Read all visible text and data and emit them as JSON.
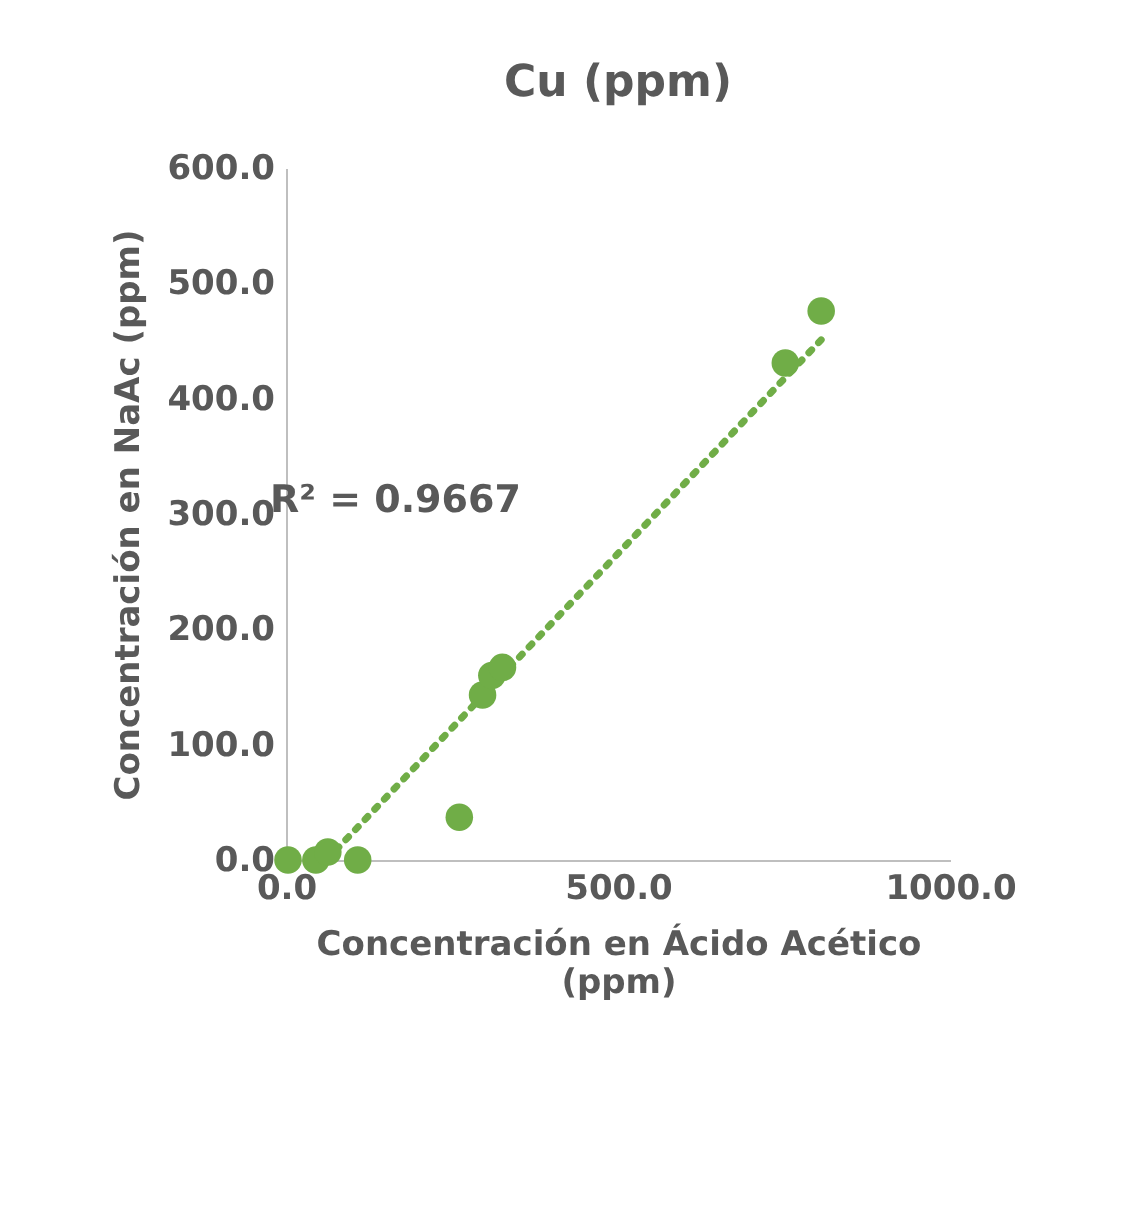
{
  "chart_data": {
    "type": "scatter",
    "title": "Cu (ppm)",
    "xlabel": "Concentración en Ácido Acético (ppm)",
    "ylabel": "Concentración en NaAc (ppm)",
    "xlim": [
      0,
      1000
    ],
    "ylim": [
      0,
      600
    ],
    "xticks": [
      {
        "value": 0,
        "label": "0.0"
      },
      {
        "value": 500,
        "label": "500.0"
      },
      {
        "value": 1000,
        "label": "1000.0"
      }
    ],
    "yticks": [
      {
        "value": 0,
        "label": "0.0"
      },
      {
        "value": 100,
        "label": "100.0"
      },
      {
        "value": 200,
        "label": "200.0"
      },
      {
        "value": 300,
        "label": "300.0"
      },
      {
        "value": 400,
        "label": "400.0"
      },
      {
        "value": 500,
        "label": "500.0"
      },
      {
        "value": 600,
        "label": "600.0"
      }
    ],
    "grid": false,
    "series": [
      {
        "marker": "circle",
        "color": "#70ad47",
        "x": [
          3,
          45,
          63,
          108,
          261,
          296,
          310,
          326,
          752,
          806
        ],
        "values": [
          0,
          0,
          7,
          0,
          37,
          143,
          160,
          167,
          431,
          476
        ]
      },
      {
        "type": "line",
        "color": "#70ad47",
        "line_style": "dotted",
        "x": [
          61,
          806
        ],
        "values": [
          0,
          451
        ]
      }
    ],
    "annotations": [
      "R² = 0.9667"
    ]
  }
}
